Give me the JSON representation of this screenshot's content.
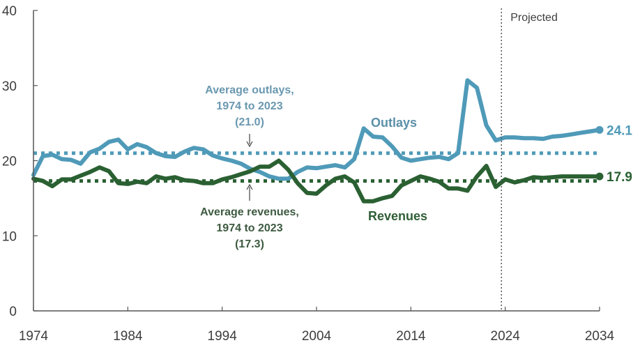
{
  "chart_data": {
    "type": "line",
    "title": "",
    "xlabel": "",
    "ylabel": "",
    "xlim": [
      1974,
      2034
    ],
    "ylim": [
      0,
      40
    ],
    "x_ticks": [
      1974,
      1984,
      1994,
      2004,
      2014,
      2024,
      2034
    ],
    "y_ticks": [
      0,
      10,
      20,
      30,
      40
    ],
    "grid": false,
    "projection_start_label": "Projected",
    "projection_start_year": 2023.6,
    "x": [
      1974,
      1975,
      1976,
      1977,
      1978,
      1979,
      1980,
      1981,
      1982,
      1983,
      1984,
      1985,
      1986,
      1987,
      1988,
      1989,
      1990,
      1991,
      1992,
      1993,
      1994,
      1995,
      1996,
      1997,
      1998,
      1999,
      2000,
      2001,
      2002,
      2003,
      2004,
      2005,
      2006,
      2007,
      2008,
      2009,
      2010,
      2011,
      2012,
      2013,
      2014,
      2015,
      2016,
      2017,
      2018,
      2019,
      2020,
      2021,
      2022,
      2023,
      2024,
      2025,
      2026,
      2027,
      2028,
      2029,
      2030,
      2031,
      2032,
      2033,
      2034
    ],
    "series": [
      {
        "name": "Outlays",
        "color": "#4f9ab8",
        "label_color": "#5b8fa8",
        "end_value_label": "24.1",
        "values": [
          18.1,
          20.6,
          20.8,
          20.2,
          20.1,
          19.6,
          21.1,
          21.6,
          22.5,
          22.8,
          21.5,
          22.2,
          21.8,
          21.0,
          20.6,
          20.5,
          21.2,
          21.7,
          21.5,
          20.7,
          20.3,
          20.0,
          19.6,
          18.9,
          18.5,
          17.9,
          17.6,
          17.6,
          18.5,
          19.1,
          19.0,
          19.2,
          19.4,
          19.1,
          20.2,
          24.3,
          23.2,
          23.1,
          21.9,
          20.4,
          20.0,
          20.2,
          20.4,
          20.5,
          20.2,
          21.0,
          30.7,
          29.7,
          24.7,
          22.7,
          23.1,
          23.1,
          23.0,
          23.0,
          22.9,
          23.2,
          23.3,
          23.5,
          23.7,
          23.9,
          24.1
        ]
      },
      {
        "name": "Revenues",
        "color": "#2a6032",
        "label_color": "#2f5e36",
        "end_value_label": "17.9",
        "values": [
          17.6,
          17.3,
          16.6,
          17.5,
          17.5,
          18.0,
          18.5,
          19.1,
          18.6,
          17.0,
          16.9,
          17.2,
          17.0,
          17.9,
          17.6,
          17.8,
          17.4,
          17.3,
          17.0,
          17.0,
          17.5,
          17.8,
          18.2,
          18.6,
          19.2,
          19.2,
          20.0,
          18.8,
          17.0,
          15.7,
          15.6,
          16.7,
          17.6,
          17.9,
          17.1,
          14.6,
          14.6,
          15.0,
          15.3,
          16.7,
          17.3,
          17.9,
          17.6,
          17.2,
          16.3,
          16.3,
          16.0,
          17.9,
          19.3,
          16.5,
          17.5,
          17.1,
          17.4,
          17.8,
          17.7,
          17.8,
          17.9,
          17.9,
          17.9,
          17.9,
          17.9
        ]
      }
    ],
    "reference_lines": [
      {
        "name": "Average outlays",
        "value": 21.0,
        "color": "#4f9ab8",
        "annotation": [
          "Average outlays,",
          "1974 to 2023",
          "(21.0)"
        ]
      },
      {
        "name": "Average revenues",
        "value": 17.3,
        "color": "#2a6032",
        "annotation": [
          "Average revenues,",
          "1974 to 2023",
          "(17.3)"
        ]
      }
    ]
  }
}
